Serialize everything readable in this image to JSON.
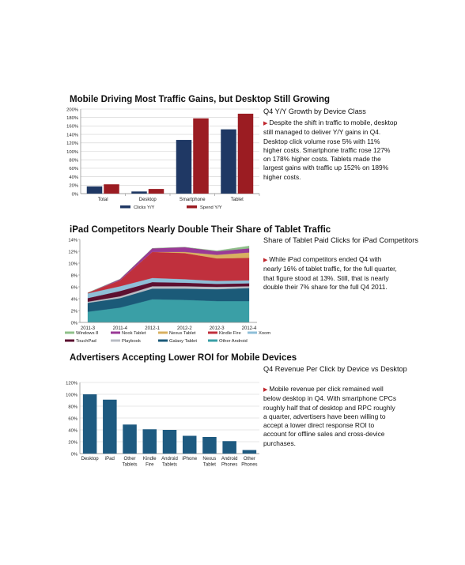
{
  "section1": {
    "title": "Mobile Driving Most Traffic Gains, but Desktop Still Growing",
    "side_title": "Q4 Y/Y Growth by Device Class",
    "side_text": "Despite the shift in traffic to mobile, desktop still managed to deliver Y/Y gains in Q4.  Desktop click volume rose 5% with 11% higher costs.  Smartphone traffic rose 127% on 178% higher costs.  Tablets made the largest gains with traffic up 152% on 189% higher costs.",
    "colors": {
      "clicks": "#1f3864",
      "spend": "#9b1c22"
    },
    "chart_data": {
      "type": "bar",
      "categories": [
        "Total",
        "Desktop",
        "Smartphone",
        "Tablet"
      ],
      "series": [
        {
          "name": "Clicks Y/Y",
          "values": [
            17,
            5,
            127,
            152
          ]
        },
        {
          "name": "Spend Y/Y",
          "values": [
            22,
            11,
            178,
            189
          ]
        }
      ],
      "yticks": [
        "0%",
        "20%",
        "40%",
        "60%",
        "80%",
        "100%",
        "120%",
        "140%",
        "160%",
        "180%",
        "200%"
      ],
      "ylim": [
        0,
        200
      ],
      "grid": true,
      "legend": "bottom"
    }
  },
  "section2": {
    "title": "iPad Competitors Nearly Double Their Share of Tablet Traffic",
    "side_title": "Share of Tablet Paid Clicks for iPad Competitors",
    "side_text": "While iPad competitors ended Q4 with nearly 16% of tablet traffic, for the full quarter, that figure stood at 13%.  Still, that is nearly double their 7% share for the full Q4 2011.",
    "chart_data": {
      "type": "area",
      "x": [
        "2011-3",
        "2011-4",
        "2012-1",
        "2012-2",
        "2012-3",
        "2012-4"
      ],
      "ylim": [
        0,
        14
      ],
      "yticks": [
        "0%",
        "2%",
        "4%",
        "6%",
        "8%",
        "10%",
        "12%",
        "14%"
      ],
      "stack_order_bottom_to_top": [
        "Other Android",
        "Galaxy Tablet",
        "Playbook",
        "TouchPad",
        "Xoom",
        "Kindle Fire",
        "Nexus Tablet",
        "Nook Tablet",
        "Windows 8"
      ],
      "series": [
        {
          "name": "Other Android",
          "color": "#3a9fa6",
          "values": [
            1.8,
            2.5,
            3.9,
            3.8,
            3.6,
            3.6
          ]
        },
        {
          "name": "Galaxy Tablet",
          "color": "#1b5a78",
          "values": [
            1.5,
            1.6,
            1.8,
            1.9,
            2.0,
            2.2
          ]
        },
        {
          "name": "Playbook",
          "color": "#b8bcc4",
          "values": [
            0.2,
            0.3,
            0.4,
            0.4,
            0.4,
            0.3
          ]
        },
        {
          "name": "TouchPad",
          "color": "#5c1030",
          "values": [
            0.6,
            0.9,
            0.7,
            0.6,
            0.5,
            0.5
          ]
        },
        {
          "name": "Xoom",
          "color": "#8fbfd8",
          "values": [
            0.8,
            0.8,
            0.7,
            0.6,
            0.5,
            0.5
          ]
        },
        {
          "name": "Kindle Fire",
          "color": "#c0303d",
          "values": [
            0.1,
            1.0,
            4.4,
            4.4,
            3.8,
            3.8
          ]
        },
        {
          "name": "Nexus Tablet",
          "color": "#d8b060",
          "values": [
            0,
            0,
            0,
            0.2,
            0.6,
            0.9
          ]
        },
        {
          "name": "Nook Tablet",
          "color": "#9a3a96",
          "values": [
            0,
            0.2,
            0.6,
            0.8,
            0.6,
            0.7
          ]
        },
        {
          "name": "Windows 8",
          "color": "#8fc08a",
          "values": [
            0,
            0,
            0,
            0,
            0.1,
            0.4
          ]
        }
      ],
      "legend": "bottom"
    }
  },
  "section3": {
    "title": "Advertisers Accepting Lower ROI for Mobile Devices",
    "side_title": "Q4 Revenue Per Click by Device vs Desktop",
    "side_text": "Mobile revenue per click remained well below desktop in Q4.  With smartphone CPCs roughly half that of desktop and RPC roughly a quarter, advertisers have been willing to accept a lower direct response ROI to account for offline sales and cross-device purchases.",
    "bar_color": "#1e5a80",
    "chart_data": {
      "type": "bar",
      "categories": [
        "Desktop",
        "iPad",
        "Other\nTablets",
        "Kindle\nFire",
        "Android\nTablets",
        "iPhone",
        "Nexus\nTablet",
        "Android\nPhones",
        "Other\nPhones"
      ],
      "values": [
        100,
        91,
        49,
        41,
        40,
        30,
        28,
        21,
        6
      ],
      "yticks": [
        "0%",
        "20%",
        "40%",
        "60%",
        "80%",
        "100%",
        "120%"
      ],
      "ylim": [
        0,
        120
      ],
      "grid": true
    }
  }
}
